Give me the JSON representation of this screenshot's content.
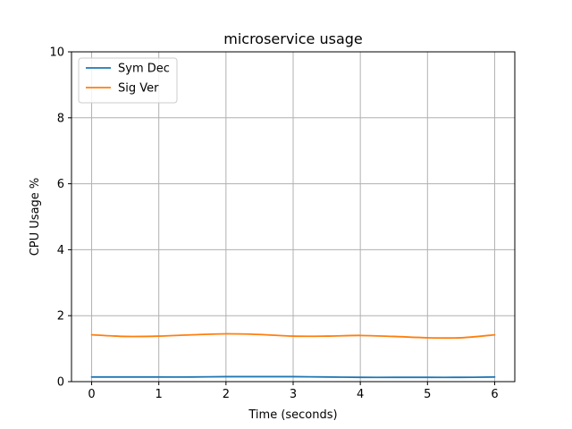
{
  "chart_data": {
    "type": "line",
    "title": "microservice usage",
    "xlabel": "Time (seconds)",
    "ylabel": "CPU Usage %",
    "xlim": [
      -0.3,
      6.3
    ],
    "ylim": [
      0,
      10
    ],
    "xticks": [
      0,
      1,
      2,
      3,
      4,
      5,
      6
    ],
    "xtick_labels": [
      "0",
      "1",
      "2",
      "3",
      "4",
      "5",
      "6"
    ],
    "yticks": [
      0,
      2,
      4,
      6,
      8,
      10
    ],
    "ytick_labels": [
      "0",
      "2",
      "4",
      "6",
      "8",
      "10"
    ],
    "grid": true,
    "legend_position": "upper-left",
    "x": [
      0,
      0.5,
      1,
      1.5,
      2,
      2.5,
      3,
      3.5,
      4,
      4.5,
      5,
      5.5,
      6
    ],
    "series": [
      {
        "name": "Sym Dec",
        "color": "#1f77b4",
        "values": [
          0.14,
          0.14,
          0.14,
          0.14,
          0.15,
          0.15,
          0.15,
          0.14,
          0.13,
          0.13,
          0.13,
          0.13,
          0.14
        ]
      },
      {
        "name": "Sig Ver",
        "color": "#ff7f0e",
        "values": [
          1.42,
          1.37,
          1.38,
          1.42,
          1.45,
          1.43,
          1.38,
          1.38,
          1.4,
          1.37,
          1.33,
          1.33,
          1.42
        ]
      }
    ]
  }
}
